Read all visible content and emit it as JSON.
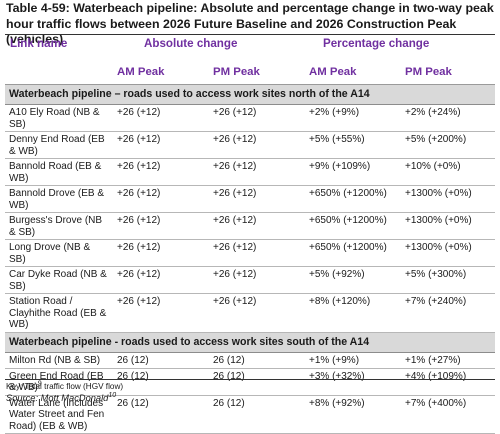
{
  "caption": "Table 4-59: Waterbeach pipeline: Absolute and percentage change in two-way peak hour traffic flows between 2026 Future Baseline and 2026 Construction Peak (vehicles)",
  "headers": {
    "link_name": "Link name",
    "absolute": "Absolute change",
    "percentage": "Percentage change",
    "am_peak": "AM Peak",
    "pm_peak": "PM Peak",
    "am_peak_2": "AM Peak",
    "pm_peak_2": "PM Peak"
  },
  "sections": [
    {
      "title": "Waterbeach pipeline – roads used to access work sites north of the A14",
      "rows": [
        {
          "name": "A10 Ely Road (NB & SB)",
          "am_abs": "+26 (+12)",
          "pm_abs": "+26 (+12)",
          "am_pct": "+2% (+9%)",
          "pm_pct": "+2% (+24%)"
        },
        {
          "name": "Denny End Road (EB & WB)",
          "am_abs": "+26 (+12)",
          "pm_abs": "+26 (+12)",
          "am_pct": "+5% (+55%)",
          "pm_pct": "+5% (+200%)"
        },
        {
          "name": "Bannold Road (EB & WB)",
          "am_abs": "+26 (+12)",
          "pm_abs": "+26 (+12)",
          "am_pct": "+9% (+109%)",
          "pm_pct": "+10% (+0%)"
        },
        {
          "name": "Bannold Drove (EB & WB)",
          "am_abs": "+26 (+12)",
          "pm_abs": "+26 (+12)",
          "am_pct": "+650% (+1200%)",
          "pm_pct": "+1300% (+0%)"
        },
        {
          "name": "Burgess's Drove (NB & SB)",
          "am_abs": "+26 (+12)",
          "pm_abs": "+26 (+12)",
          "am_pct": "+650% (+1200%)",
          "pm_pct": "+1300% (+0%)"
        },
        {
          "name": "Long Drove (NB & SB)",
          "am_abs": "+26 (+12)",
          "pm_abs": "+26 (+12)",
          "am_pct": "+650% (+1200%)",
          "pm_pct": "+1300% (+0%)"
        },
        {
          "name": "Car Dyke Road (NB & SB)",
          "am_abs": "+26 (+12)",
          "pm_abs": "+26 (+12)",
          "am_pct": "+5% (+92%)",
          "pm_pct": "+5% (+300%)"
        },
        {
          "name": "Station Road / Clayhithe Road (EB & WB)",
          "am_abs": "+26 (+12)",
          "pm_abs": "+26 (+12)",
          "am_pct": "+8% (+120%)",
          "pm_pct": "+7% (+240%)"
        }
      ]
    },
    {
      "title": "Waterbeach pipeline - roads used to access work sites south of the A14",
      "rows": [
        {
          "name": "Milton Rd (NB & SB)",
          "am_abs": "26 (12)",
          "pm_abs": "26 (12)",
          "am_pct": "+1% (+9%)",
          "pm_pct": "+1% (+27%)"
        },
        {
          "name": "Green End Road (EB & WB)",
          "sup": "9",
          "am_abs": "26 (12)",
          "pm_abs": "26 (12)",
          "am_pct": "+3% (+32%)",
          "pm_pct": "+4% (+109%)"
        },
        {
          "name": "Water Lane (includes Water Street and Fen Road) (EB & WB)",
          "am_abs": "26 (12)",
          "pm_abs": "26 (12)",
          "am_pct": "+8% (+92%)",
          "pm_pct": "+7% (+400%)"
        }
      ]
    }
  ],
  "key": "Key: Total traffic flow (HGV flow)",
  "source": "Source: Mott MacDonald",
  "source_sup": "10"
}
